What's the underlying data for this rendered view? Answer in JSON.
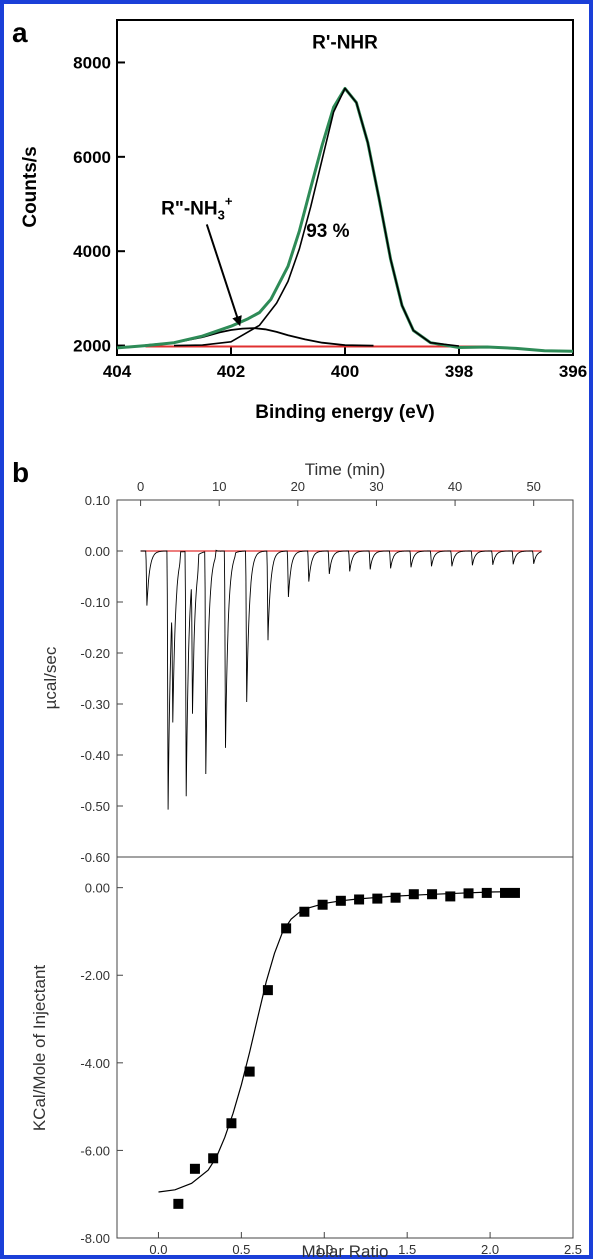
{
  "figure": {
    "panel_a_letter": "a",
    "panel_b_letter": "b",
    "frame_color": "#1a3fd8"
  },
  "chart_data": [
    {
      "id": "panel-a",
      "type": "line",
      "xlabel": "Binding energy (eV)",
      "ylabel": "Counts/s",
      "xlim": [
        404,
        396
      ],
      "ylim": [
        1800,
        8900
      ],
      "x_reversed": true,
      "xticks": [
        404,
        402,
        400,
        398,
        396
      ],
      "xtick_labels": [
        "404",
        "402",
        "400",
        "398",
        "396"
      ],
      "yticks": [
        2000,
        4000,
        6000,
        8000
      ],
      "ytick_labels": [
        "2000",
        "4000",
        "6000",
        "8000"
      ],
      "grid": false,
      "annotations": [
        {
          "text": "R'-NHR",
          "x": 400.0,
          "y": 8300
        },
        {
          "text": "93 %",
          "x": 400.3,
          "y": 4300
        },
        {
          "text": "R\"-NH3+",
          "display_base": "R\"-NH",
          "display_sub": "3",
          "display_sup": "+",
          "x": 402.6,
          "y": 4780,
          "arrow_to": [
            401.85,
            2450
          ]
        }
      ],
      "series": [
        {
          "role": "data",
          "color": "#2e8b57",
          "x": [
            404.0,
            403.5,
            403.0,
            402.5,
            402.0,
            401.7,
            401.5,
            401.3,
            401.0,
            400.8,
            400.6,
            400.4,
            400.2,
            400.0,
            399.8,
            399.6,
            399.4,
            399.2,
            399.0,
            398.8,
            398.5,
            398.0,
            397.5,
            397.0,
            396.5,
            396.0
          ],
          "y": [
            1950,
            2000,
            2060,
            2200,
            2410,
            2570,
            2700,
            2980,
            3680,
            4430,
            5350,
            6250,
            7050,
            7450,
            7150,
            6300,
            5100,
            3830,
            2850,
            2320,
            2060,
            1960,
            1970,
            1940,
            1890,
            1880
          ]
        },
        {
          "role": "fit-main",
          "color": "#000000",
          "x": [
            403.0,
            402.5,
            402.0,
            401.5,
            401.2,
            401.0,
            400.8,
            400.6,
            400.4,
            400.2,
            400.0,
            399.8,
            399.6,
            399.4,
            399.2,
            399.0,
            398.8,
            398.5,
            398.0
          ],
          "y": [
            2000,
            2010,
            2080,
            2430,
            2900,
            3360,
            4050,
            4950,
            5950,
            6950,
            7450,
            7150,
            6300,
            5100,
            3830,
            2850,
            2320,
            2060,
            1990
          ]
        },
        {
          "role": "fit-minor",
          "color": "#000000",
          "x": [
            403.5,
            403.0,
            402.5,
            402.2,
            402.0,
            401.8,
            401.6,
            401.4,
            401.2,
            401.0,
            400.7,
            400.4,
            400.0,
            399.5
          ],
          "y": [
            2010,
            2060,
            2180,
            2280,
            2330,
            2360,
            2370,
            2345,
            2290,
            2220,
            2130,
            2060,
            2010,
            2000
          ]
        },
        {
          "role": "baseline",
          "color": "#e03030",
          "x": [
            403.5,
            397.5
          ],
          "y": [
            1980,
            1980
          ]
        }
      ]
    },
    {
      "id": "panel-b-top",
      "type": "line",
      "xlabel_top": "Time (min)",
      "ylabel": "µcal/sec",
      "xlim": [
        -3,
        55
      ],
      "ylim": [
        -0.6,
        0.1
      ],
      "xticks": [
        0,
        10,
        20,
        30,
        40,
        50
      ],
      "xtick_labels": [
        "0",
        "10",
        "20",
        "30",
        "40",
        "50"
      ],
      "yticks": [
        0.1,
        0.0,
        -0.1,
        -0.2,
        -0.3,
        -0.4,
        -0.5,
        -0.6
      ],
      "ytick_labels": [
        "0.10",
        "0.00",
        "-0.10",
        "-0.20",
        "-0.30",
        "-0.40",
        "-0.50",
        "-0.60"
      ],
      "grid": false,
      "baseline": {
        "color": "#e03030",
        "x": [
          0,
          51
        ],
        "y": [
          0,
          0
        ]
      },
      "trace_color": "#000000",
      "injections": [
        {
          "t": 0.8,
          "depth": -0.107
        },
        {
          "t": 3.5,
          "depth": -0.507
        },
        {
          "t": 4.1,
          "depth": -0.245
        },
        {
          "t": 5.8,
          "depth": -0.48
        },
        {
          "t": 6.6,
          "depth": -0.27
        },
        {
          "t": 8.3,
          "depth": -0.436
        },
        {
          "t": 10.8,
          "depth": -0.386
        },
        {
          "t": 13.5,
          "depth": -0.296
        },
        {
          "t": 16.2,
          "depth": -0.175
        },
        {
          "t": 18.8,
          "depth": -0.09
        },
        {
          "t": 21.4,
          "depth": -0.06
        },
        {
          "t": 24.0,
          "depth": -0.045
        },
        {
          "t": 26.6,
          "depth": -0.04
        },
        {
          "t": 29.2,
          "depth": -0.036
        },
        {
          "t": 31.8,
          "depth": -0.034
        },
        {
          "t": 34.4,
          "depth": -0.032
        },
        {
          "t": 37.0,
          "depth": -0.03
        },
        {
          "t": 39.6,
          "depth": -0.03
        },
        {
          "t": 42.2,
          "depth": -0.028
        },
        {
          "t": 44.8,
          "depth": -0.027
        },
        {
          "t": 47.4,
          "depth": -0.026
        },
        {
          "t": 50.0,
          "depth": -0.025
        }
      ],
      "overshoots": [
        {
          "t": 5.1,
          "h": 0.018
        },
        {
          "t": 7.4,
          "h": 0.026
        },
        {
          "t": 9.6,
          "h": 0.012
        },
        {
          "t": 12.1,
          "h": 0.006
        }
      ]
    },
    {
      "id": "panel-b-bottom",
      "type": "scatter",
      "xlabel": "Molar Ratio",
      "ylabel": "KCal/Mole of Injectant",
      "xlim": [
        -0.25,
        2.5
      ],
      "ylim": [
        -8.0,
        0.7
      ],
      "xticks": [
        0.0,
        0.5,
        1.0,
        1.5,
        2.0,
        2.5
      ],
      "xtick_labels": [
        "0.0",
        "0.5",
        "1.0",
        "1.5",
        "2.0",
        "2.5"
      ],
      "yticks": [
        0.0,
        -2.0,
        -4.0,
        -6.0,
        -8.0
      ],
      "ytick_labels": [
        "0.00",
        "-2.00",
        "-4.00",
        "-6.00",
        "-8.00"
      ],
      "grid": false,
      "points": {
        "x": [
          0.12,
          0.22,
          0.33,
          0.44,
          0.55,
          0.66,
          0.77,
          0.88,
          0.99,
          1.1,
          1.21,
          1.32,
          1.43,
          1.54,
          1.65,
          1.76,
          1.87,
          1.98,
          2.09,
          2.15
        ],
        "y": [
          -7.22,
          -6.42,
          -6.18,
          -5.38,
          -4.2,
          -2.34,
          -0.93,
          -0.55,
          -0.39,
          -0.3,
          -0.27,
          -0.25,
          -0.23,
          -0.15,
          -0.15,
          -0.2,
          -0.13,
          -0.12,
          -0.12,
          -0.12
        ]
      },
      "fit": {
        "color": "#000000",
        "x": [
          0.0,
          0.1,
          0.2,
          0.3,
          0.35,
          0.4,
          0.45,
          0.5,
          0.55,
          0.6,
          0.65,
          0.7,
          0.75,
          0.8,
          0.85,
          0.9,
          1.0,
          1.1,
          1.2,
          1.4,
          1.6,
          1.8,
          2.0,
          2.15
        ],
        "y": [
          -6.95,
          -6.9,
          -6.75,
          -6.45,
          -6.15,
          -5.7,
          -5.15,
          -4.5,
          -3.75,
          -2.95,
          -2.15,
          -1.5,
          -1.0,
          -0.72,
          -0.56,
          -0.47,
          -0.36,
          -0.3,
          -0.26,
          -0.2,
          -0.16,
          -0.13,
          -0.1,
          -0.09
        ]
      }
    }
  ]
}
